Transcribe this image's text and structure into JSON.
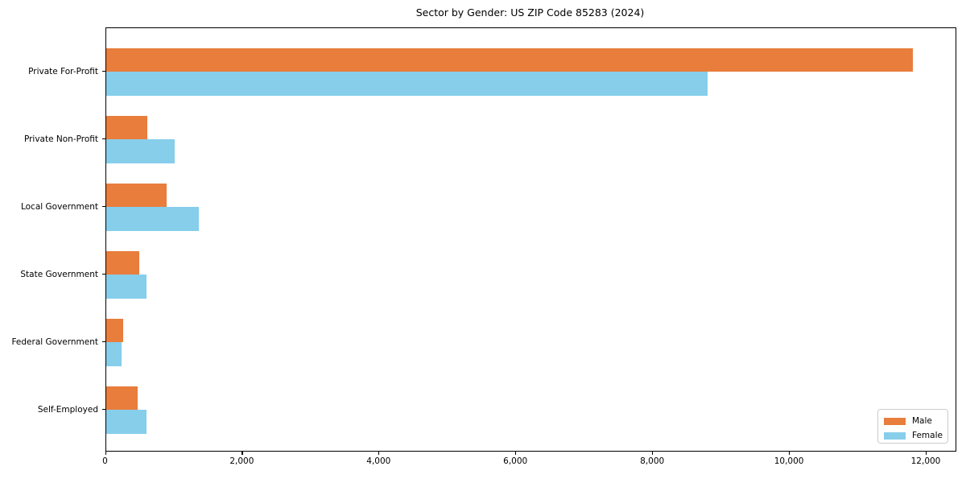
{
  "title": "Sector by Gender: US ZIP Code 85283 (2024)",
  "legend": {
    "items": [
      {
        "label": "Male",
        "color": "#e87d3c"
      },
      {
        "label": "Female",
        "color": "#87ceeb"
      }
    ]
  },
  "chart_data": {
    "type": "bar",
    "orientation": "horizontal",
    "title": "Sector by Gender: US ZIP Code 85283 (2024)",
    "categories": [
      "Private For-Profit",
      "Private Non-Profit",
      "Local Government",
      "State Government",
      "Federal Government",
      "Self-Employed"
    ],
    "series": [
      {
        "name": "Male",
        "color": "#e87d3c",
        "values": [
          11800,
          600,
          890,
          490,
          250,
          460
        ]
      },
      {
        "name": "Female",
        "color": "#87ceeb",
        "values": [
          8800,
          1010,
          1360,
          590,
          230,
          590
        ]
      }
    ],
    "xlabel": "",
    "ylabel": "",
    "xlim": [
      0,
      12418
    ],
    "x_ticks": [
      {
        "value": 0,
        "label": "0"
      },
      {
        "value": 2000,
        "label": "2,000"
      },
      {
        "value": 4000,
        "label": "4,000"
      },
      {
        "value": 6000,
        "label": "6,000"
      },
      {
        "value": 8000,
        "label": "8,000"
      },
      {
        "value": 10000,
        "label": "10,000"
      },
      {
        "value": 12000,
        "label": "12,000"
      }
    ],
    "grid": false,
    "legend_position": "lower right"
  }
}
